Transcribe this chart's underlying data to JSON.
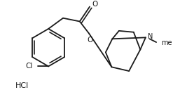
{
  "bg_color": "#ffffff",
  "line_color": "#1a1a1a",
  "text_color": "#1a1a1a",
  "line_width": 1.3,
  "figsize": [
    2.47,
    1.38
  ],
  "dpi": 100,
  "hcl_text": "HCl",
  "n_text": "N",
  "me_text": "me",
  "o_text": "O",
  "cl_text": "Cl"
}
